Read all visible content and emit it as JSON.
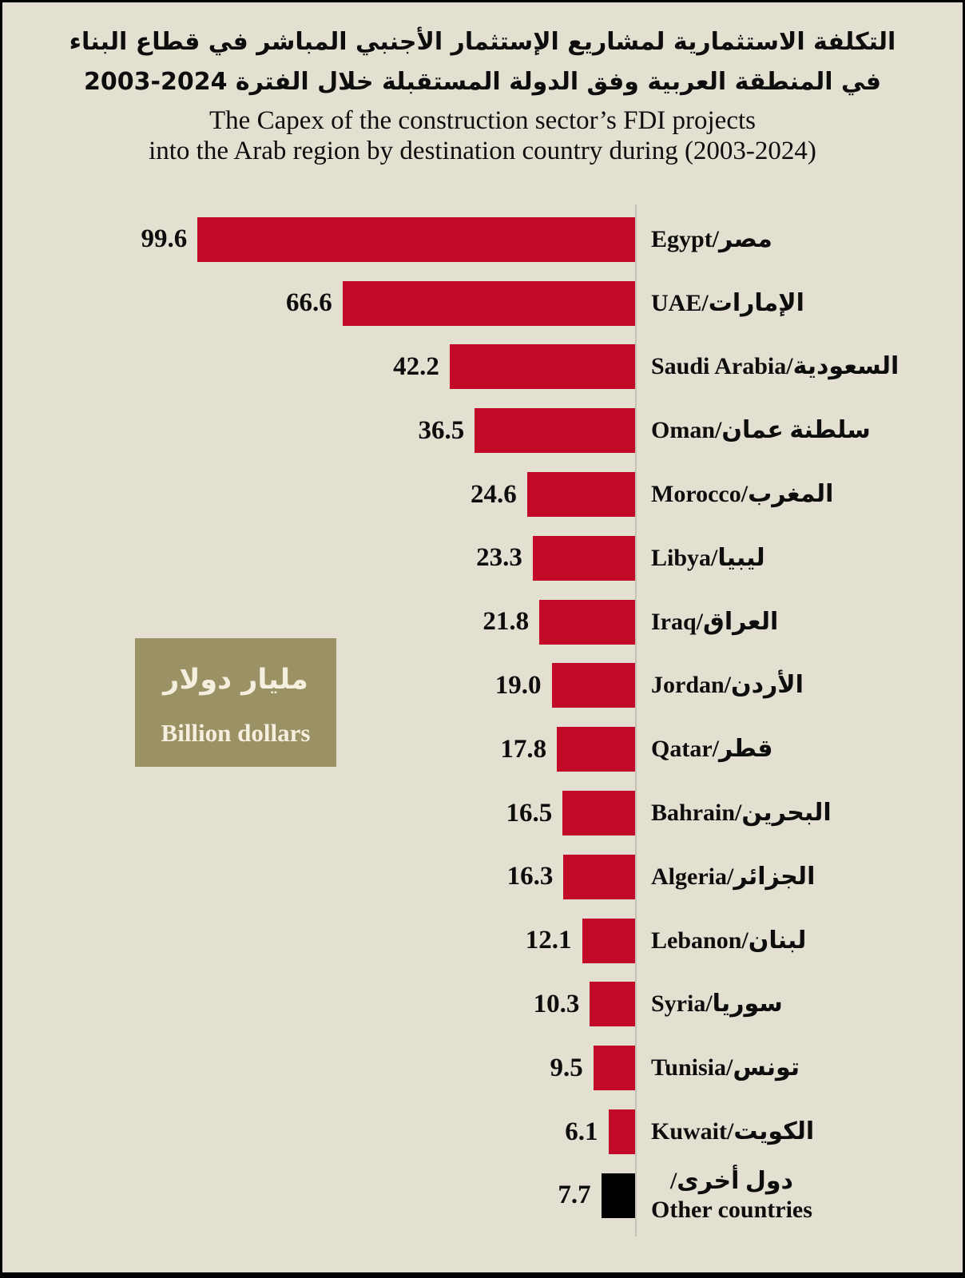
{
  "title": {
    "ar_line1": "التكلفة الاستثمارية لمشاريع الإستثمار الأجنبي المباشر في قطاع البناء",
    "ar_line2": "في المنطقة العربية وفق الدولة المستقبلة خلال الفترة 2024-2003",
    "en_line1": "The Capex of the construction sector’s FDI projects",
    "en_line2": "into the Arab region by destination country during (2003-2024)"
  },
  "legend": {
    "unit_ar": "مليار دولار",
    "unit_en": "Billion dollars"
  },
  "colors": {
    "background": "#e3e0d2",
    "bar": "#c20a28",
    "other_bar": "#000000",
    "axis_line": "#c6c3b6",
    "legend_box": "#9a9164",
    "legend_text": "#f4efdf",
    "text": "#0d0d0d"
  },
  "chart_data": {
    "type": "bar",
    "orientation": "horizontal",
    "title_ar": "التكلفة الاستثمارية لمشاريع الإستثمار الأجنبي المباشر في قطاع البناء في المنطقة العربية وفق الدولة المستقبلة خلال الفترة 2003-2024",
    "title_en": "The Capex of the construction sector’s FDI projects into the Arab region by destination country during (2003-2024)",
    "unit": "Billion dollars",
    "value_axis_range": [
      0,
      100
    ],
    "grid": false,
    "legend_position": "middle-left",
    "categories": [
      "Egypt",
      "UAE",
      "Saudi Arabia",
      "Oman",
      "Morocco",
      "Libya",
      "Iraq",
      "Jordan",
      "Qatar",
      "Bahrain",
      "Algeria",
      "Lebanon",
      "Syria",
      "Tunisia",
      "Kuwait",
      "Other countries"
    ],
    "values": [
      99.6,
      66.6,
      42.2,
      36.5,
      24.6,
      23.3,
      21.8,
      19.0,
      17.8,
      16.5,
      16.3,
      12.1,
      10.3,
      9.5,
      6.1,
      7.7
    ],
    "rows": [
      {
        "country_en": "Egypt",
        "country_ar": "مصر",
        "value": 99.6,
        "label_lines": [
          {
            "text": "Egypt/مصر",
            "dir": "ltr"
          }
        ]
      },
      {
        "country_en": "UAE",
        "country_ar": "الإمارات",
        "value": 66.6,
        "label_lines": [
          {
            "text": "UAE/الإمارات",
            "dir": "ltr"
          }
        ]
      },
      {
        "country_en": "Saudi Arabia",
        "country_ar": "السعودية",
        "value": 42.2,
        "label_lines": [
          {
            "text": "Saudi Arabia/السعودية",
            "dir": "ltr"
          }
        ]
      },
      {
        "country_en": "Oman",
        "country_ar": "سلطنة عمان",
        "value": 36.5,
        "label_lines": [
          {
            "text": "Oman/سلطنة عمان",
            "dir": "ltr"
          }
        ]
      },
      {
        "country_en": "Morocco",
        "country_ar": "المغرب",
        "value": 24.6,
        "label_lines": [
          {
            "text": "Morocco/المغرب",
            "dir": "ltr"
          }
        ]
      },
      {
        "country_en": "Libya",
        "country_ar": "ليبيا",
        "value": 23.3,
        "label_lines": [
          {
            "text": "Libya/ليبيا",
            "dir": "ltr"
          }
        ]
      },
      {
        "country_en": "Iraq",
        "country_ar": "العراق",
        "value": 21.8,
        "label_lines": [
          {
            "text": "Iraq/العراق",
            "dir": "ltr"
          }
        ]
      },
      {
        "country_en": "Jordan",
        "country_ar": "الأردن",
        "value": 19.0,
        "label_lines": [
          {
            "text": "Jordan/الأردن",
            "dir": "ltr"
          }
        ]
      },
      {
        "country_en": "Qatar",
        "country_ar": "قطر",
        "value": 17.8,
        "label_lines": [
          {
            "text": "Qatar/قطر",
            "dir": "ltr"
          }
        ]
      },
      {
        "country_en": "Bahrain",
        "country_ar": "البحرين",
        "value": 16.5,
        "label_lines": [
          {
            "text": "Bahrain/البحرين",
            "dir": "ltr"
          }
        ]
      },
      {
        "country_en": "Algeria",
        "country_ar": "الجزائر",
        "value": 16.3,
        "label_lines": [
          {
            "text": "Algeria/الجزائر",
            "dir": "ltr"
          }
        ]
      },
      {
        "country_en": "Lebanon",
        "country_ar": "لبنان",
        "value": 12.1,
        "label_lines": [
          {
            "text": "Lebanon/لبنان",
            "dir": "ltr"
          }
        ]
      },
      {
        "country_en": "Syria",
        "country_ar": "سوريا",
        "value": 10.3,
        "label_lines": [
          {
            "text": "Syria/سوريا",
            "dir": "ltr"
          }
        ]
      },
      {
        "country_en": "Tunisia",
        "country_ar": "تونس",
        "value": 9.5,
        "label_lines": [
          {
            "text": "Tunisia/تونس",
            "dir": "ltr"
          }
        ]
      },
      {
        "country_en": "Kuwait",
        "country_ar": "الكويت",
        "value": 6.1,
        "label_lines": [
          {
            "text": "Kuwait/الكويت",
            "dir": "ltr"
          }
        ]
      },
      {
        "country_en": "Other countries",
        "country_ar": "دول أخرى",
        "value": 7.7,
        "color": "#000000",
        "label_lines": [
          {
            "text": "دول أخرى/",
            "dir": "rtl"
          },
          {
            "text": "Other countries",
            "dir": "ltr"
          }
        ]
      }
    ]
  }
}
